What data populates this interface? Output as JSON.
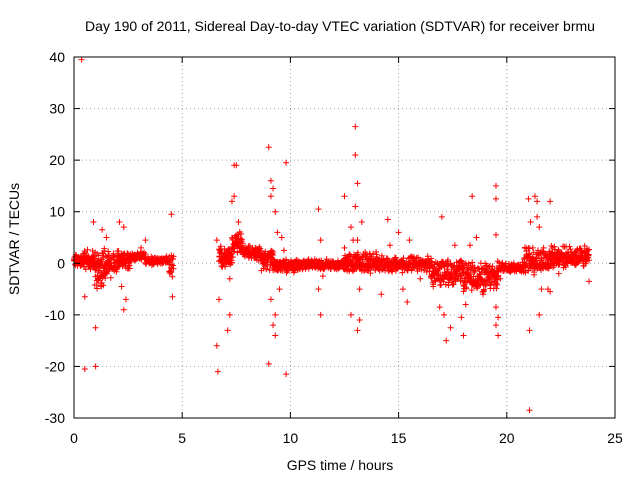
{
  "chart_data": {
    "type": "scatter",
    "title": "Day 190 of 2011, Sidereal Day-to-day VTEC variation (SDTVAR) for receiver brmu",
    "xlabel": "GPS time / hours",
    "ylabel": "SDTVAR / TECUs",
    "xlim": [
      0,
      25
    ],
    "ylim": [
      -30,
      40
    ],
    "xticks": [
      0,
      5,
      10,
      15,
      20,
      25
    ],
    "yticks": [
      -30,
      -20,
      -10,
      0,
      10,
      20,
      30,
      40
    ],
    "grid": true,
    "marker": "+",
    "color": "#ff0000",
    "series": [
      {
        "name": "SDTVAR",
        "bands": [
          {
            "x": [
              0.0,
              0.45
            ],
            "y": [
              -1.0,
              2.0
            ],
            "step": 0.02
          },
          {
            "x": [
              0.45,
              0.9
            ],
            "y": [
              -2.0,
              3.0
            ],
            "step": 0.02
          },
          {
            "x": [
              0.9,
              1.4
            ],
            "y": [
              -5.5,
              3.5
            ],
            "step": 0.015
          },
          {
            "x": [
              1.4,
              2.0
            ],
            "y": [
              -3.0,
              3.0
            ],
            "step": 0.02
          },
          {
            "x": [
              2.0,
              2.6
            ],
            "y": [
              -1.5,
              3.0
            ],
            "step": 0.02
          },
          {
            "x": [
              2.6,
              3.3
            ],
            "y": [
              0.0,
              2.5
            ],
            "step": 0.03
          },
          {
            "x": [
              3.3,
              4.4
            ],
            "y": [
              -0.5,
              1.5
            ],
            "step": 0.03
          },
          {
            "x": [
              4.4,
              4.6
            ],
            "y": [
              -3.0,
              1.5
            ],
            "step": 0.03
          },
          {
            "x": [
              6.7,
              7.3
            ],
            "y": [
              -1.0,
              3.5
            ],
            "step": 0.02
          },
          {
            "x": [
              7.3,
              7.8
            ],
            "y": [
              1.0,
              7.0
            ],
            "step": 0.02
          },
          {
            "x": [
              7.8,
              8.6
            ],
            "y": [
              0.5,
              3.5
            ],
            "step": 0.02
          },
          {
            "x": [
              8.6,
              9.2
            ],
            "y": [
              -1.5,
              3.0
            ],
            "step": 0.02
          },
          {
            "x": [
              9.2,
              10.2
            ],
            "y": [
              -2.0,
              1.0
            ],
            "step": 0.02
          },
          {
            "x": [
              10.2,
              12.5
            ],
            "y": [
              -1.5,
              1.0
            ],
            "step": 0.025
          },
          {
            "x": [
              12.5,
              14.0
            ],
            "y": [
              -2.0,
              2.5
            ],
            "step": 0.02
          },
          {
            "x": [
              14.0,
              16.5
            ],
            "y": [
              -2.0,
              1.5
            ],
            "step": 0.025
          },
          {
            "x": [
              16.5,
              18.0
            ],
            "y": [
              -4.5,
              1.0
            ],
            "step": 0.02
          },
          {
            "x": [
              18.0,
              19.6
            ],
            "y": [
              -6.0,
              0.5
            ],
            "step": 0.02
          },
          {
            "x": [
              19.6,
              20.8
            ],
            "y": [
              -2.0,
              0.5
            ],
            "step": 0.025
          },
          {
            "x": [
              20.8,
              22.0
            ],
            "y": [
              -2.5,
              3.5
            ],
            "step": 0.02
          },
          {
            "x": [
              22.0,
              23.8
            ],
            "y": [
              -1.0,
              3.5
            ],
            "step": 0.02
          }
        ],
        "outliers": [
          [
            0.35,
            39.5
          ],
          [
            0.5,
            -20.5
          ],
          [
            1.0,
            -12.5
          ],
          [
            1.0,
            -20
          ],
          [
            0.9,
            8
          ],
          [
            0.5,
            -6.5
          ],
          [
            1.3,
            6.5
          ],
          [
            1.5,
            5
          ],
          [
            2.1,
            8
          ],
          [
            2.3,
            7
          ],
          [
            2.2,
            -4.5
          ],
          [
            2.3,
            -9
          ],
          [
            2.4,
            -7
          ],
          [
            3.1,
            3
          ],
          [
            3.3,
            4.5
          ],
          [
            4.5,
            9.5
          ],
          [
            4.55,
            -6.5
          ],
          [
            4.5,
            1.5
          ],
          [
            6.6,
            -16
          ],
          [
            6.65,
            -21
          ],
          [
            6.6,
            4.5
          ],
          [
            6.7,
            -7
          ],
          [
            7.1,
            -13
          ],
          [
            7.2,
            -10
          ],
          [
            7.3,
            12
          ],
          [
            7.4,
            13
          ],
          [
            7.4,
            19
          ],
          [
            7.5,
            19
          ],
          [
            7.6,
            8
          ],
          [
            7.2,
            -3
          ],
          [
            9.0,
            22.5
          ],
          [
            9.1,
            16
          ],
          [
            9.1,
            13
          ],
          [
            9.2,
            14.5
          ],
          [
            9.3,
            10
          ],
          [
            9.0,
            -19.5
          ],
          [
            9.2,
            -12
          ],
          [
            9.1,
            -7
          ],
          [
            9.3,
            -10
          ],
          [
            9.3,
            -14
          ],
          [
            9.4,
            6
          ],
          [
            9.5,
            -5
          ],
          [
            9.6,
            5
          ],
          [
            9.7,
            2.5
          ],
          [
            9.8,
            19.5
          ],
          [
            9.8,
            -21.5
          ],
          [
            11.3,
            10.5
          ],
          [
            11.4,
            4.5
          ],
          [
            11.4,
            -10
          ],
          [
            11.3,
            -5
          ],
          [
            11.5,
            -2.5
          ],
          [
            12.5,
            13
          ],
          [
            12.5,
            3
          ],
          [
            12.8,
            -10
          ],
          [
            12.9,
            4.5
          ],
          [
            12.8,
            7
          ],
          [
            13.0,
            26.5
          ],
          [
            13.0,
            21
          ],
          [
            13.1,
            15.5
          ],
          [
            13.1,
            4.5
          ],
          [
            13.1,
            -13
          ],
          [
            13.2,
            -11
          ],
          [
            13.2,
            -5
          ],
          [
            13.3,
            8
          ],
          [
            13.0,
            11
          ],
          [
            14.2,
            -6
          ],
          [
            14.5,
            8.5
          ],
          [
            14.6,
            3.5
          ],
          [
            15.0,
            6
          ],
          [
            15.2,
            -5
          ],
          [
            15.5,
            4.5
          ],
          [
            15.4,
            -7.5
          ],
          [
            16.0,
            -3
          ],
          [
            16.6,
            -4.5
          ],
          [
            16.9,
            -8.5
          ],
          [
            17.0,
            9
          ],
          [
            17.1,
            -10
          ],
          [
            17.2,
            -15
          ],
          [
            17.4,
            -12.5
          ],
          [
            17.6,
            3.5
          ],
          [
            17.9,
            -10.5
          ],
          [
            18.0,
            -14
          ],
          [
            18.1,
            -8
          ],
          [
            18.3,
            3.5
          ],
          [
            18.4,
            13
          ],
          [
            18.6,
            5
          ],
          [
            18.9,
            -6
          ],
          [
            19.0,
            -4
          ],
          [
            19.5,
            15
          ],
          [
            19.5,
            12.5
          ],
          [
            19.5,
            5.5
          ],
          [
            19.5,
            -12
          ],
          [
            19.6,
            -14
          ],
          [
            19.5,
            -8.5
          ],
          [
            19.6,
            -10.5
          ],
          [
            19.7,
            -3
          ],
          [
            21.0,
            12.5
          ],
          [
            21.05,
            -28.5
          ],
          [
            21.05,
            -13
          ],
          [
            21.1,
            8
          ],
          [
            21.2,
            3
          ],
          [
            21.3,
            13
          ],
          [
            21.4,
            12
          ],
          [
            21.4,
            9
          ],
          [
            21.5,
            7
          ],
          [
            21.5,
            -10
          ],
          [
            21.6,
            -5
          ],
          [
            21.7,
            3
          ],
          [
            21.9,
            -5
          ],
          [
            22.0,
            12
          ],
          [
            22.0,
            -5.5
          ],
          [
            22.1,
            2
          ],
          [
            22.4,
            -2
          ],
          [
            23.5,
            2
          ],
          [
            23.7,
            1
          ],
          [
            23.8,
            -3.5
          ]
        ]
      }
    ]
  }
}
